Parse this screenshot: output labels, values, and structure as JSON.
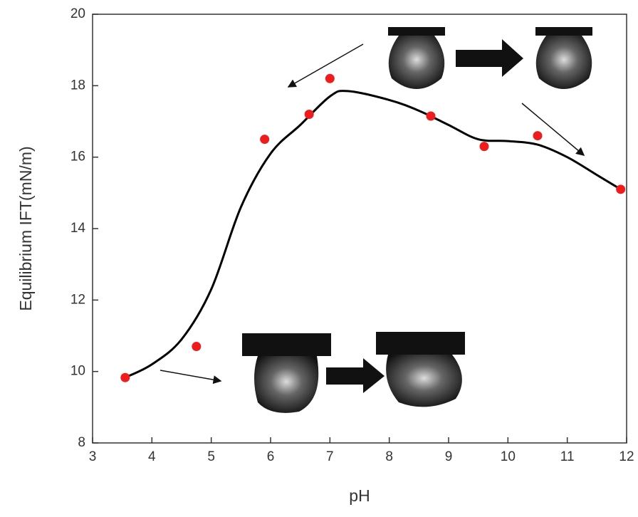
{
  "chart_data": {
    "type": "scatter",
    "x_label": "pH",
    "y_label": "Equilibrium IFT(mN/m)",
    "xlim": [
      3,
      12
    ],
    "xticks": [
      3,
      4,
      5,
      6,
      7,
      8,
      9,
      10,
      11,
      12
    ],
    "ylim": [
      8,
      20
    ],
    "yticks": [
      8,
      10,
      12,
      14,
      16,
      18,
      20
    ],
    "series": [
      {
        "mode": "markers",
        "color": "#ee1c1c",
        "x": [
          3.55,
          4.75,
          5.9,
          6.65,
          7.0,
          8.7,
          9.6,
          10.5,
          11.9
        ],
        "values": [
          9.83,
          10.7,
          16.5,
          17.2,
          18.2,
          17.15,
          16.3,
          16.6,
          15.1
        ]
      },
      {
        "mode": "smooth-line",
        "color": "#000000",
        "x": [
          3.55,
          4,
          4.5,
          5,
          5.5,
          6,
          6.5,
          7,
          7.3,
          8,
          8.5,
          9,
          9.5,
          10,
          10.5,
          11,
          11.5,
          11.9
        ],
        "values": [
          9.83,
          10.2,
          10.9,
          12.3,
          14.6,
          16.1,
          16.9,
          17.7,
          17.85,
          17.6,
          17.3,
          16.9,
          16.5,
          16.45,
          16.35,
          16.0,
          15.5,
          15.1
        ]
      }
    ]
  }
}
